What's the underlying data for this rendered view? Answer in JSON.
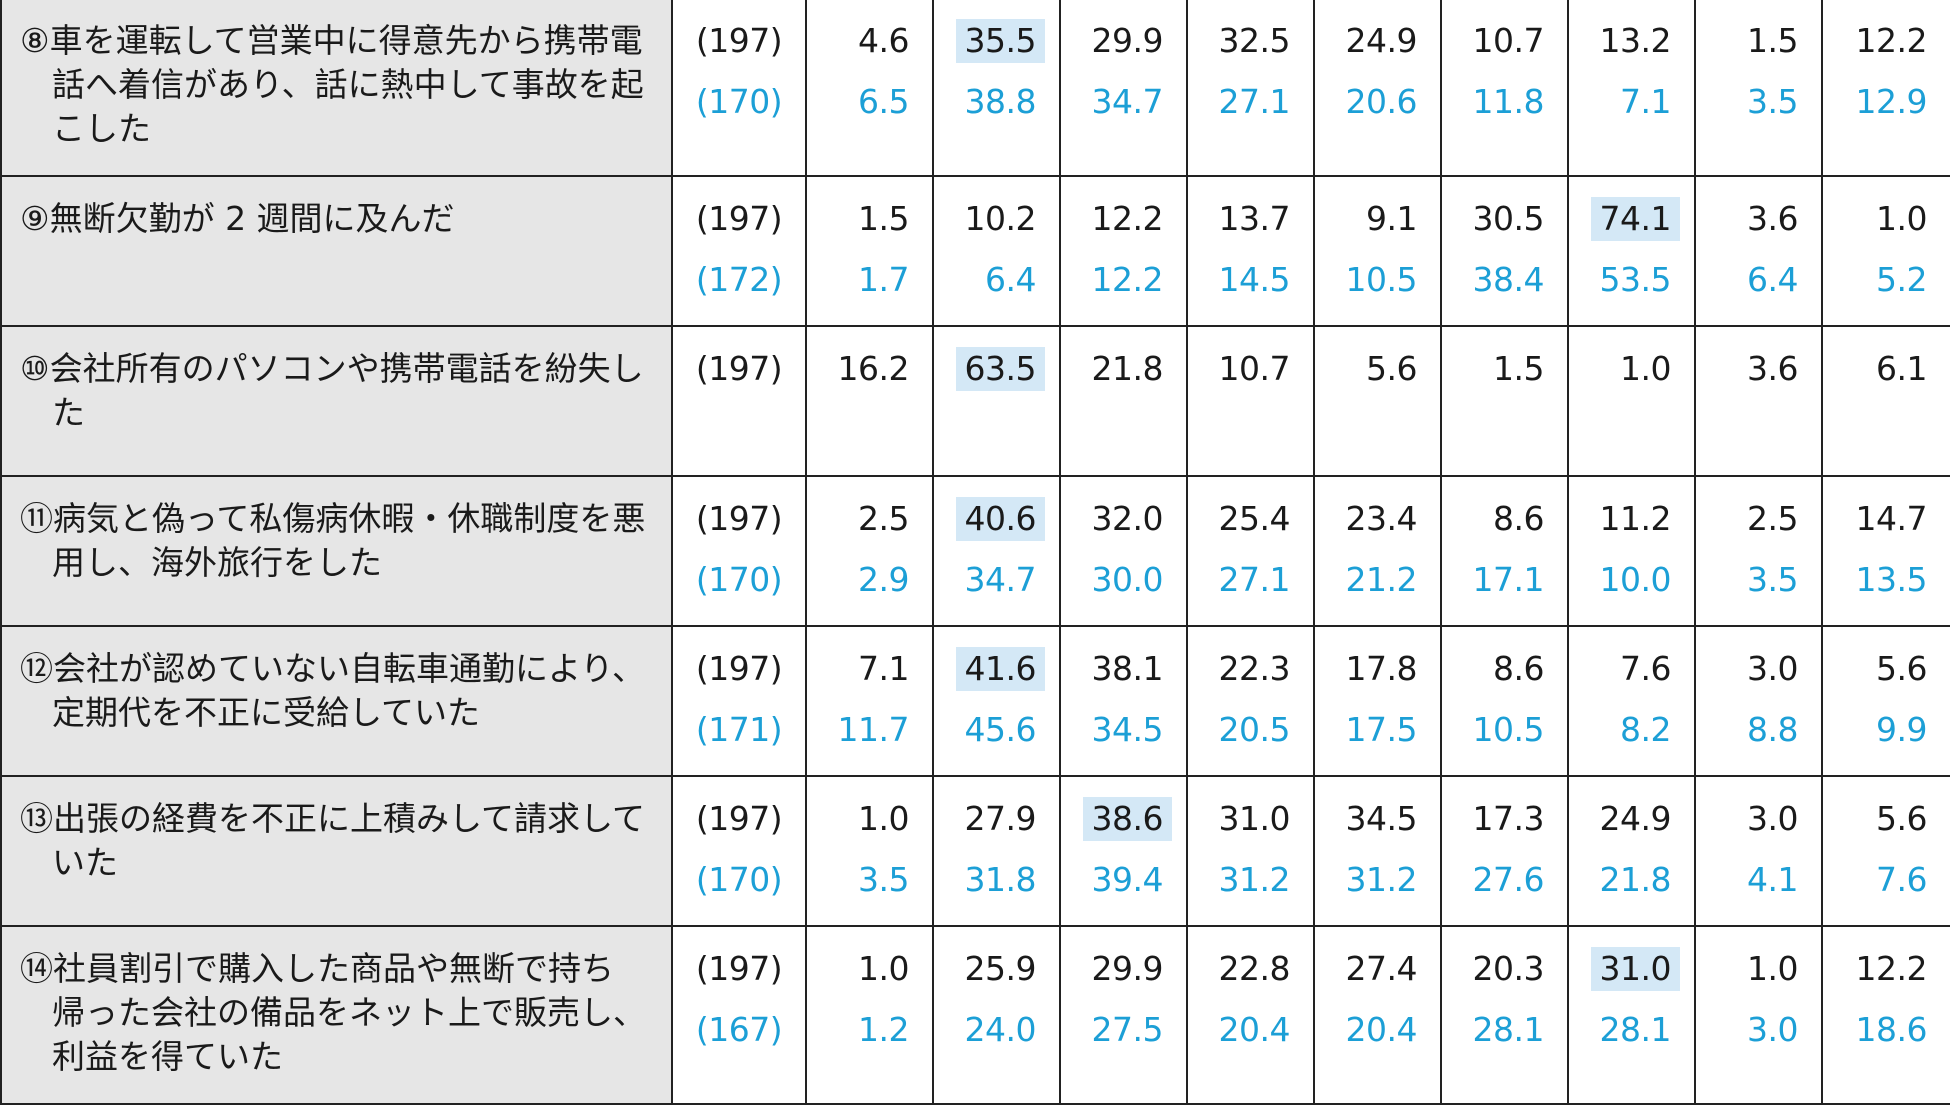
{
  "rows": [
    {
      "label_num": "⑧",
      "label_text": "車を運転して営業中に得意先から携帯電話へ着信があり、話に熱中して事故を起こした",
      "label_lines": [
        "⑧車を運転して営業中に得意先から携帯電",
        "話へ着信があり、話に熱中して事故を起",
        "こした"
      ],
      "n_top": "(197)",
      "n_bottom": "(170)",
      "top": [
        "4.6",
        "35.5",
        "29.9",
        "32.5",
        "24.9",
        "10.7",
        "13.2",
        "1.5",
        "12.2"
      ],
      "bottom": [
        "6.5",
        "38.8",
        "34.7",
        "27.1",
        "20.6",
        "11.8",
        "7.1",
        "3.5",
        "12.9"
      ],
      "highlight_index": 1
    },
    {
      "label_num": "⑨",
      "label_text": "無断欠勤が 2 週間に及んだ",
      "label_lines": [
        "⑨無断欠勤が 2 週間に及んだ"
      ],
      "n_top": "(197)",
      "n_bottom": "(172)",
      "top": [
        "1.5",
        "10.2",
        "12.2",
        "13.7",
        "9.1",
        "30.5",
        "74.1",
        "3.6",
        "1.0"
      ],
      "bottom": [
        "1.7",
        "6.4",
        "12.2",
        "14.5",
        "10.5",
        "38.4",
        "53.5",
        "6.4",
        "5.2"
      ],
      "highlight_index": 6
    },
    {
      "label_num": "⑩",
      "label_text": "会社所有のパソコンや携帯電話を紛失した",
      "label_lines": [
        "⑩会社所有のパソコンや携帯電話を紛失し",
        "た"
      ],
      "n_top": "(197)",
      "n_bottom": "",
      "top": [
        "16.2",
        "63.5",
        "21.8",
        "10.7",
        "5.6",
        "1.5",
        "1.0",
        "3.6",
        "6.1"
      ],
      "bottom": [
        "",
        "",
        "",
        "",
        "",
        "",
        "",
        "",
        ""
      ],
      "highlight_index": 1
    },
    {
      "label_num": "⑪",
      "label_text": "病気と偽って私傷病休暇・休職制度を悪用し、海外旅行をした",
      "label_lines": [
        "⑪病気と偽って私傷病休暇・休職制度を悪",
        "用し、海外旅行をした"
      ],
      "n_top": "(197)",
      "n_bottom": "(170)",
      "top": [
        "2.5",
        "40.6",
        "32.0",
        "25.4",
        "23.4",
        "8.6",
        "11.2",
        "2.5",
        "14.7"
      ],
      "bottom": [
        "2.9",
        "34.7",
        "30.0",
        "27.1",
        "21.2",
        "17.1",
        "10.0",
        "3.5",
        "13.5"
      ],
      "highlight_index": 1
    },
    {
      "label_num": "⑫",
      "label_text": "会社が認めていない自転車通勤により、定期代を不正に受給していた",
      "label_lines": [
        "⑫会社が認めていない自転車通勤により、",
        "定期代を不正に受給していた"
      ],
      "n_top": "(197)",
      "n_bottom": "(171)",
      "top": [
        "7.1",
        "41.6",
        "38.1",
        "22.3",
        "17.8",
        "8.6",
        "7.6",
        "3.0",
        "5.6"
      ],
      "bottom": [
        "11.7",
        "45.6",
        "34.5",
        "20.5",
        "17.5",
        "10.5",
        "8.2",
        "8.8",
        "9.9"
      ],
      "highlight_index": 1
    },
    {
      "label_num": "⑬",
      "label_text": "出張の経費を不正に上積みして請求していた",
      "label_lines": [
        "⑬出張の経費を不正に上積みして請求して",
        "いた"
      ],
      "n_top": "(197)",
      "n_bottom": "(170)",
      "top": [
        "1.0",
        "27.9",
        "38.6",
        "31.0",
        "34.5",
        "17.3",
        "24.9",
        "3.0",
        "5.6"
      ],
      "bottom": [
        "3.5",
        "31.8",
        "39.4",
        "31.2",
        "31.2",
        "27.6",
        "21.8",
        "4.1",
        "7.6"
      ],
      "highlight_index": 2
    },
    {
      "label_num": "⑭",
      "label_text": "社員割引で購入した商品や無断で持ち帰った会社の備品をネット上で販売し、利益を得ていた",
      "label_lines": [
        "⑭社員割引で購入した商品や無断で持ち",
        "帰った会社の備品をネット上で販売し、",
        "利益を得ていた"
      ],
      "n_top": "(197)",
      "n_bottom": "(167)",
      "top": [
        "1.0",
        "25.9",
        "29.9",
        "22.8",
        "27.4",
        "20.3",
        "31.0",
        "1.0",
        "12.2"
      ],
      "bottom": [
        "1.2",
        "24.0",
        "27.5",
        "20.4",
        "20.4",
        "28.1",
        "28.1",
        "3.0",
        "18.6"
      ],
      "highlight_index": 6
    }
  ],
  "colors": {
    "label_bg": "#e6e6e6",
    "highlight_bg": "#d4e8f6",
    "top_text": "#1a1a1a",
    "bottom_text": "#1c9fd6",
    "border": "#222222"
  }
}
